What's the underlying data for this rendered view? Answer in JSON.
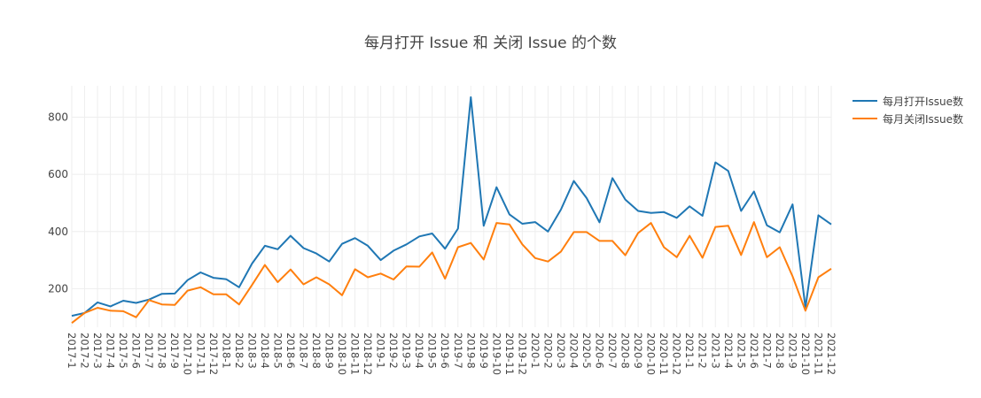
{
  "chart_data": {
    "type": "line",
    "title": "每月打开 Issue 和 关闭 Issue 的个数",
    "x": [
      "2017-1",
      "2017-2",
      "2017-3",
      "2017-4",
      "2017-5",
      "2017-6",
      "2017-7",
      "2017-8",
      "2017-9",
      "2017-10",
      "2017-11",
      "2017-12",
      "2018-1",
      "2018-2",
      "2018-3",
      "2018-4",
      "2018-5",
      "2018-6",
      "2018-7",
      "2018-8",
      "2018-9",
      "2018-10",
      "2018-11",
      "2018-12",
      "2019-1",
      "2019-2",
      "2019-3",
      "2019-4",
      "2019-5",
      "2019-6",
      "2019-7",
      "2019-8",
      "2019-9",
      "2019-10",
      "2019-11",
      "2019-12",
      "2020-1",
      "2020-2",
      "2020-3",
      "2020-4",
      "2020-5",
      "2020-6",
      "2020-7",
      "2020-8",
      "2020-9",
      "2020-10",
      "2020-11",
      "2020-12",
      "2021-1",
      "2021-2",
      "2021-3",
      "2021-4",
      "2021-5",
      "2021-6",
      "2021-7",
      "2021-8",
      "2021-9",
      "2021-10",
      "2021-11",
      "2021-12"
    ],
    "yticks": [
      200,
      400,
      600,
      800
    ],
    "ylim": [
      65,
      910
    ],
    "grid": true,
    "legend_position": "top-right",
    "series": [
      {
        "name": "每月打开Issue数",
        "color": "#1f77b4",
        "values": [
          105,
          115,
          152,
          138,
          158,
          150,
          162,
          182,
          183,
          230,
          257,
          238,
          233,
          205,
          288,
          350,
          338,
          385,
          342,
          323,
          295,
          357,
          377,
          350,
          300,
          333,
          355,
          383,
          393,
          340,
          410,
          870,
          420,
          555,
          460,
          427,
          433,
          400,
          477,
          577,
          517,
          432,
          587,
          512,
          472,
          465,
          468,
          448,
          488,
          455,
          642,
          612,
          472,
          540,
          422,
          397,
          495,
          133,
          457,
          425
        ]
      },
      {
        "name": "每月关闭Issue数",
        "color": "#ff7f0e",
        "values": [
          80,
          115,
          133,
          123,
          121,
          100,
          160,
          145,
          143,
          193,
          205,
          180,
          180,
          145,
          213,
          283,
          223,
          267,
          215,
          240,
          215,
          177,
          268,
          240,
          253,
          232,
          278,
          277,
          327,
          235,
          345,
          360,
          302,
          430,
          425,
          355,
          307,
          295,
          330,
          398,
          398,
          367,
          367,
          317,
          395,
          430,
          345,
          310,
          385,
          308,
          416,
          420,
          318,
          433,
          310,
          345,
          243,
          123,
          240,
          270
        ]
      }
    ]
  }
}
